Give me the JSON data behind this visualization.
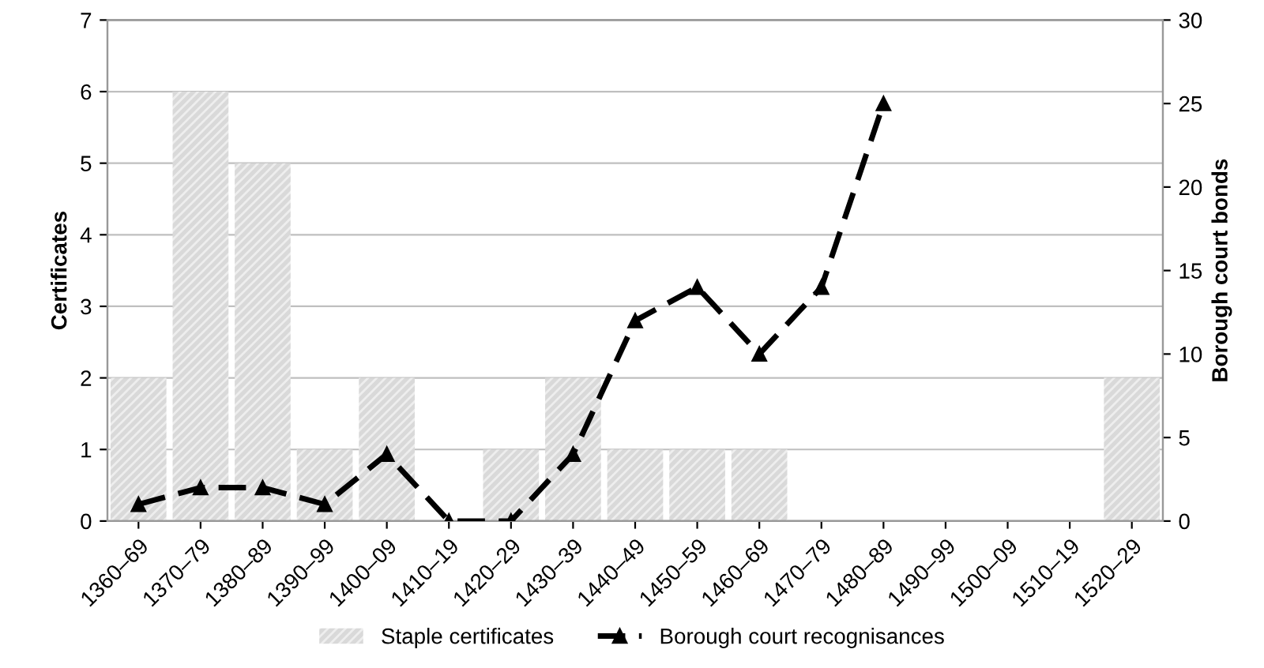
{
  "chart_data": {
    "type": "bar",
    "ylabel": "Certificates",
    "y2label": "Borough court bonds",
    "categories": [
      "1360–69",
      "1370–79",
      "1380–89",
      "1390–99",
      "1400–09",
      "1410–19",
      "1420–29",
      "1430–39",
      "1440–49",
      "1450–59",
      "1460–69",
      "1470–79",
      "1480–89",
      "1490–99",
      "1500–09",
      "1510–19",
      "1520–29"
    ],
    "series": [
      {
        "name": "Staple certificates",
        "color": "#d9d9d9",
        "values": [
          2,
          6,
          5,
          1,
          2,
          0,
          1,
          2,
          1,
          1,
          1,
          0,
          0,
          0,
          0,
          0,
          2
        ]
      },
      {
        "name": "Borough court recognisances",
        "type": "line",
        "axis": "y2",
        "color": "#000000",
        "marker": "triangle",
        "line_style": "dashed",
        "values": [
          1,
          2,
          2,
          1,
          4,
          0,
          0,
          4,
          12,
          14,
          10,
          14,
          25,
          null,
          null,
          null,
          null
        ]
      }
    ],
    "ylim": [
      0,
      7
    ],
    "yticks": [
      0,
      1,
      2,
      3,
      4,
      5,
      6,
      7
    ],
    "y2lim": [
      0,
      30
    ],
    "y2ticks": [
      0,
      5,
      10,
      15,
      20,
      25,
      30
    ],
    "grid": "y",
    "legend": "bottom"
  }
}
